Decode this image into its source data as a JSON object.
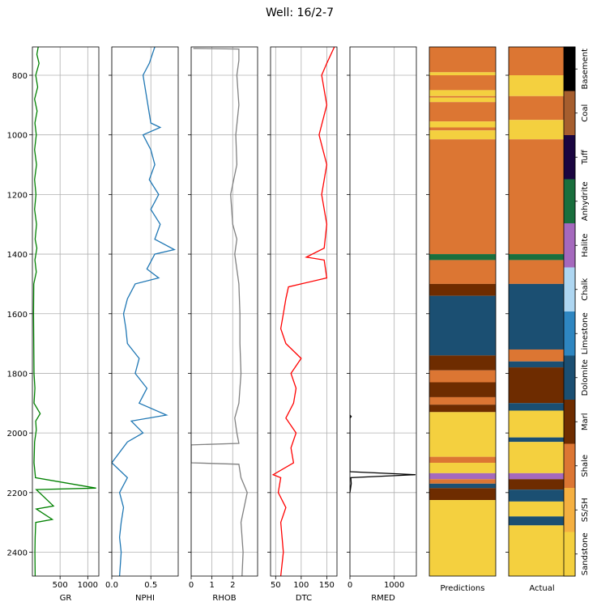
{
  "title": "Well: 16/2-7",
  "depth_range": [
    2480,
    705
  ],
  "depth_ticks": [
    800,
    1000,
    1200,
    1400,
    1600,
    1800,
    2000,
    2200,
    2400
  ],
  "chart_data": {
    "type": "line",
    "title": "Well: 16/2-7",
    "y_axis": {
      "ylim": [
        2480,
        705
      ],
      "ticks": [
        800,
        1000,
        1200,
        1400,
        1600,
        1800,
        2000,
        2200,
        2400
      ],
      "inverted": true,
      "grid": true
    },
    "tracks": [
      {
        "name": "GR",
        "color": "#008000",
        "xlim": [
          0,
          1200
        ],
        "xticks": [
          500,
          1000
        ],
        "points": [
          [
            105,
            705
          ],
          [
            80,
            730
          ],
          [
            120,
            760
          ],
          [
            60,
            800
          ],
          [
            95,
            840
          ],
          [
            40,
            880
          ],
          [
            85,
            920
          ],
          [
            45,
            960
          ],
          [
            70,
            1000
          ],
          [
            40,
            1050
          ],
          [
            75,
            1100
          ],
          [
            40,
            1150
          ],
          [
            65,
            1200
          ],
          [
            40,
            1250
          ],
          [
            75,
            1300
          ],
          [
            50,
            1350
          ],
          [
            80,
            1380
          ],
          [
            45,
            1420
          ],
          [
            70,
            1460
          ],
          [
            25,
            1500
          ],
          [
            20,
            1600
          ],
          [
            25,
            1700
          ],
          [
            30,
            1800
          ],
          [
            45,
            1850
          ],
          [
            30,
            1900
          ],
          [
            140,
            1935
          ],
          [
            60,
            1960
          ],
          [
            70,
            1990
          ],
          [
            40,
            2030
          ],
          [
            30,
            2100
          ],
          [
            55,
            2150
          ],
          [
            1150,
            2185
          ],
          [
            70,
            2190
          ],
          [
            380,
            2245
          ],
          [
            70,
            2255
          ],
          [
            360,
            2290
          ],
          [
            60,
            2300
          ],
          [
            50,
            2350
          ],
          [
            45,
            2400
          ],
          [
            50,
            2480
          ]
        ]
      },
      {
        "name": "NPHI",
        "color": "#1f77b4",
        "xlim": [
          0,
          0.85
        ],
        "xticks": [
          0.0,
          0.5
        ],
        "points": [
          [
            0.55,
            705
          ],
          [
            0.48,
            760
          ],
          [
            0.4,
            800
          ],
          [
            0.45,
            880
          ],
          [
            0.5,
            960
          ],
          [
            0.62,
            975
          ],
          [
            0.4,
            1000
          ],
          [
            0.5,
            1050
          ],
          [
            0.55,
            1100
          ],
          [
            0.48,
            1150
          ],
          [
            0.6,
            1200
          ],
          [
            0.5,
            1250
          ],
          [
            0.62,
            1300
          ],
          [
            0.55,
            1350
          ],
          [
            0.8,
            1385
          ],
          [
            0.55,
            1400
          ],
          [
            0.45,
            1450
          ],
          [
            0.6,
            1480
          ],
          [
            0.3,
            1500
          ],
          [
            0.2,
            1550
          ],
          [
            0.15,
            1600
          ],
          [
            0.18,
            1650
          ],
          [
            0.2,
            1700
          ],
          [
            0.35,
            1750
          ],
          [
            0.3,
            1800
          ],
          [
            0.45,
            1850
          ],
          [
            0.35,
            1900
          ],
          [
            0.7,
            1940
          ],
          [
            0.25,
            1960
          ],
          [
            0.4,
            2000
          ],
          [
            0.2,
            2030
          ],
          [
            0.0,
            2100
          ],
          [
            0.2,
            2150
          ],
          [
            0.1,
            2200
          ],
          [
            0.15,
            2250
          ],
          [
            0.12,
            2300
          ],
          [
            0.1,
            2350
          ],
          [
            0.12,
            2400
          ],
          [
            0.1,
            2480
          ]
        ]
      },
      {
        "name": "RHOB",
        "color": "#808080",
        "xlim": [
          0,
          3.2
        ],
        "xticks": [
          0,
          1,
          2
        ],
        "points": [
          [
            0.1,
            710
          ],
          [
            2.3,
            712
          ],
          [
            2.3,
            750
          ],
          [
            2.2,
            800
          ],
          [
            2.3,
            900
          ],
          [
            2.15,
            1000
          ],
          [
            2.2,
            1100
          ],
          [
            1.9,
            1200
          ],
          [
            2.0,
            1300
          ],
          [
            2.2,
            1350
          ],
          [
            2.1,
            1400
          ],
          [
            2.3,
            1500
          ],
          [
            2.35,
            1600
          ],
          [
            2.35,
            1700
          ],
          [
            2.4,
            1800
          ],
          [
            2.3,
            1900
          ],
          [
            2.1,
            1950
          ],
          [
            2.2,
            2000
          ],
          [
            2.3,
            2035
          ],
          [
            0.0,
            2040
          ],
          [
            0.0,
            2100
          ],
          [
            2.3,
            2105
          ],
          [
            2.4,
            2150
          ],
          [
            2.7,
            2200
          ],
          [
            2.4,
            2300
          ],
          [
            2.5,
            2400
          ],
          [
            2.45,
            2480
          ]
        ]
      },
      {
        "name": "DTC",
        "color": "#ff0000",
        "xlim": [
          40,
          170
        ],
        "xticks": [
          50,
          100,
          150
        ],
        "points": [
          [
            165,
            705
          ],
          [
            150,
            760
          ],
          [
            140,
            800
          ],
          [
            150,
            900
          ],
          [
            135,
            1000
          ],
          [
            150,
            1100
          ],
          [
            140,
            1200
          ],
          [
            150,
            1300
          ],
          [
            145,
            1380
          ],
          [
            110,
            1410
          ],
          [
            145,
            1420
          ],
          [
            150,
            1480
          ],
          [
            100,
            1500
          ],
          [
            75,
            1510
          ],
          [
            70,
            1550
          ],
          [
            65,
            1600
          ],
          [
            60,
            1650
          ],
          [
            70,
            1700
          ],
          [
            100,
            1750
          ],
          [
            80,
            1800
          ],
          [
            90,
            1850
          ],
          [
            85,
            1900
          ],
          [
            70,
            1950
          ],
          [
            90,
            2000
          ],
          [
            80,
            2050
          ],
          [
            85,
            2100
          ],
          [
            45,
            2140
          ],
          [
            60,
            2150
          ],
          [
            55,
            2200
          ],
          [
            70,
            2250
          ],
          [
            60,
            2300
          ],
          [
            65,
            2400
          ],
          [
            60,
            2480
          ]
        ]
      },
      {
        "name": "RMED",
        "color": "#000000",
        "xlim": [
          0,
          1500
        ],
        "xticks": [
          0,
          1000
        ],
        "points": [
          [
            0,
            1940
          ],
          [
            30,
            1945
          ],
          [
            0,
            1950
          ],
          [
            0,
            2130
          ],
          [
            1480,
            2140
          ],
          [
            20,
            2150
          ],
          [
            30,
            2170
          ],
          [
            0,
            2200
          ]
        ]
      }
    ],
    "facies_legend": [
      "Sandstone",
      "SS/SH",
      "Shale",
      "Marl",
      "Dolomite",
      "Limestone",
      "Chalk",
      "Halite",
      "Anhydrite",
      "Tuff",
      "Coal",
      "Basement"
    ],
    "facies_colors": [
      "#f4d03f",
      "#f5b041",
      "#dc7633",
      "#6e2c00",
      "#1b4f72",
      "#2e86c1",
      "#aed6f1",
      "#a569bd",
      "#196f3d",
      "#1a0540",
      "#a65e2e",
      "#000000"
    ],
    "predictions": {
      "label": "Predictions",
      "intervals": [
        [
          705,
          790,
          "Shale"
        ],
        [
          790,
          800,
          "Sandstone"
        ],
        [
          800,
          850,
          "Shale"
        ],
        [
          850,
          870,
          "Sandstone"
        ],
        [
          870,
          875,
          "Shale"
        ],
        [
          875,
          890,
          "Sandstone"
        ],
        [
          890,
          955,
          "Shale"
        ],
        [
          955,
          975,
          "Sandstone"
        ],
        [
          975,
          985,
          "Shale"
        ],
        [
          985,
          1015,
          "Sandstone"
        ],
        [
          1015,
          1400,
          "Shale"
        ],
        [
          1400,
          1420,
          "Anhydrite"
        ],
        [
          1420,
          1500,
          "Shale"
        ],
        [
          1500,
          1540,
          "Marl"
        ],
        [
          1540,
          1740,
          "Dolomite"
        ],
        [
          1740,
          1790,
          "Marl"
        ],
        [
          1790,
          1830,
          "Shale"
        ],
        [
          1830,
          1880,
          "Marl"
        ],
        [
          1880,
          1905,
          "Shale"
        ],
        [
          1905,
          1930,
          "Marl"
        ],
        [
          1930,
          2080,
          "Sandstone"
        ],
        [
          2080,
          2100,
          "Shale"
        ],
        [
          2100,
          2135,
          "Sandstone"
        ],
        [
          2135,
          2155,
          "Halite"
        ],
        [
          2155,
          2170,
          "Shale"
        ],
        [
          2170,
          2185,
          "Dolomite"
        ],
        [
          2185,
          2225,
          "Marl"
        ],
        [
          2225,
          2480,
          "Sandstone"
        ]
      ]
    },
    "actual": {
      "label": "Actual",
      "intervals": [
        [
          705,
          800,
          "Shale"
        ],
        [
          800,
          870,
          "Sandstone"
        ],
        [
          870,
          950,
          "Shale"
        ],
        [
          950,
          990,
          "Sandstone"
        ],
        [
          990,
          1015,
          "Sandstone"
        ],
        [
          1015,
          1400,
          "Shale"
        ],
        [
          1400,
          1420,
          "Anhydrite"
        ],
        [
          1420,
          1500,
          "Shale"
        ],
        [
          1500,
          1720,
          "Dolomite"
        ],
        [
          1720,
          1760,
          "Shale"
        ],
        [
          1760,
          1780,
          "Dolomite"
        ],
        [
          1780,
          1900,
          "Marl"
        ],
        [
          1900,
          1925,
          "Dolomite"
        ],
        [
          1925,
          2015,
          "Sandstone"
        ],
        [
          2015,
          2030,
          "Dolomite"
        ],
        [
          2030,
          2135,
          "Sandstone"
        ],
        [
          2135,
          2155,
          "Halite"
        ],
        [
          2155,
          2190,
          "Marl"
        ],
        [
          2190,
          2230,
          "Dolomite"
        ],
        [
          2230,
          2280,
          "Sandstone"
        ],
        [
          2280,
          2310,
          "Dolomite"
        ],
        [
          2310,
          2480,
          "Sandstone"
        ]
      ]
    }
  }
}
